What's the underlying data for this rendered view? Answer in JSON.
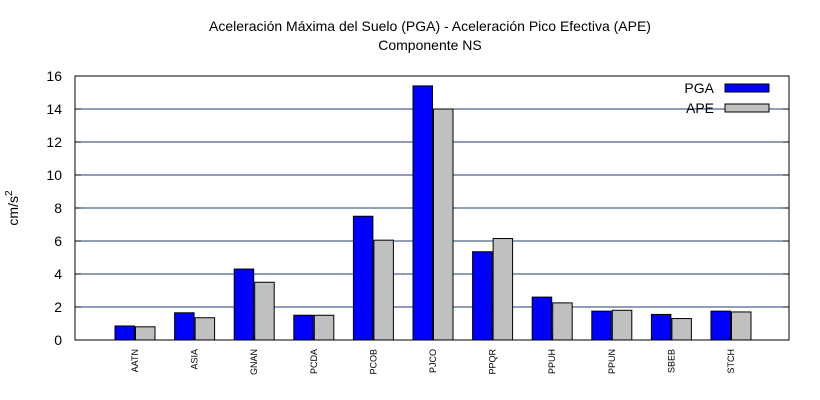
{
  "chart_data": {
    "type": "bar",
    "title": "Aceleración Máxima del Suelo (PGA) -  Aceleración Pico Efectiva (APE)",
    "subtitle": "Componente NS",
    "xlabel": "",
    "ylabel_base": "cm/s",
    "ylabel_exp": "2",
    "ylim": [
      0,
      16
    ],
    "yticks": [
      "0",
      "2",
      "4",
      "6",
      "8",
      "10",
      "12",
      "14",
      "16"
    ],
    "grid": "horizontal",
    "legend_position": "top-right",
    "categories": [
      "AATN",
      "ASIA",
      "GNAN",
      "PCDA",
      "PCOB",
      "PJCO",
      "PPQR",
      "PPUH",
      "PPUN",
      "SBEB",
      "STCH"
    ],
    "series": [
      {
        "name": "PGA",
        "color": "#0000ff",
        "values": [
          0.85,
          1.65,
          4.3,
          1.5,
          7.5,
          15.4,
          5.35,
          2.6,
          1.75,
          1.55,
          1.75
        ]
      },
      {
        "name": "APE",
        "color": "#c0c0c0",
        "values": [
          0.8,
          1.35,
          3.5,
          1.5,
          6.05,
          14.0,
          6.15,
          2.25,
          1.8,
          1.3,
          1.7
        ]
      }
    ]
  }
}
